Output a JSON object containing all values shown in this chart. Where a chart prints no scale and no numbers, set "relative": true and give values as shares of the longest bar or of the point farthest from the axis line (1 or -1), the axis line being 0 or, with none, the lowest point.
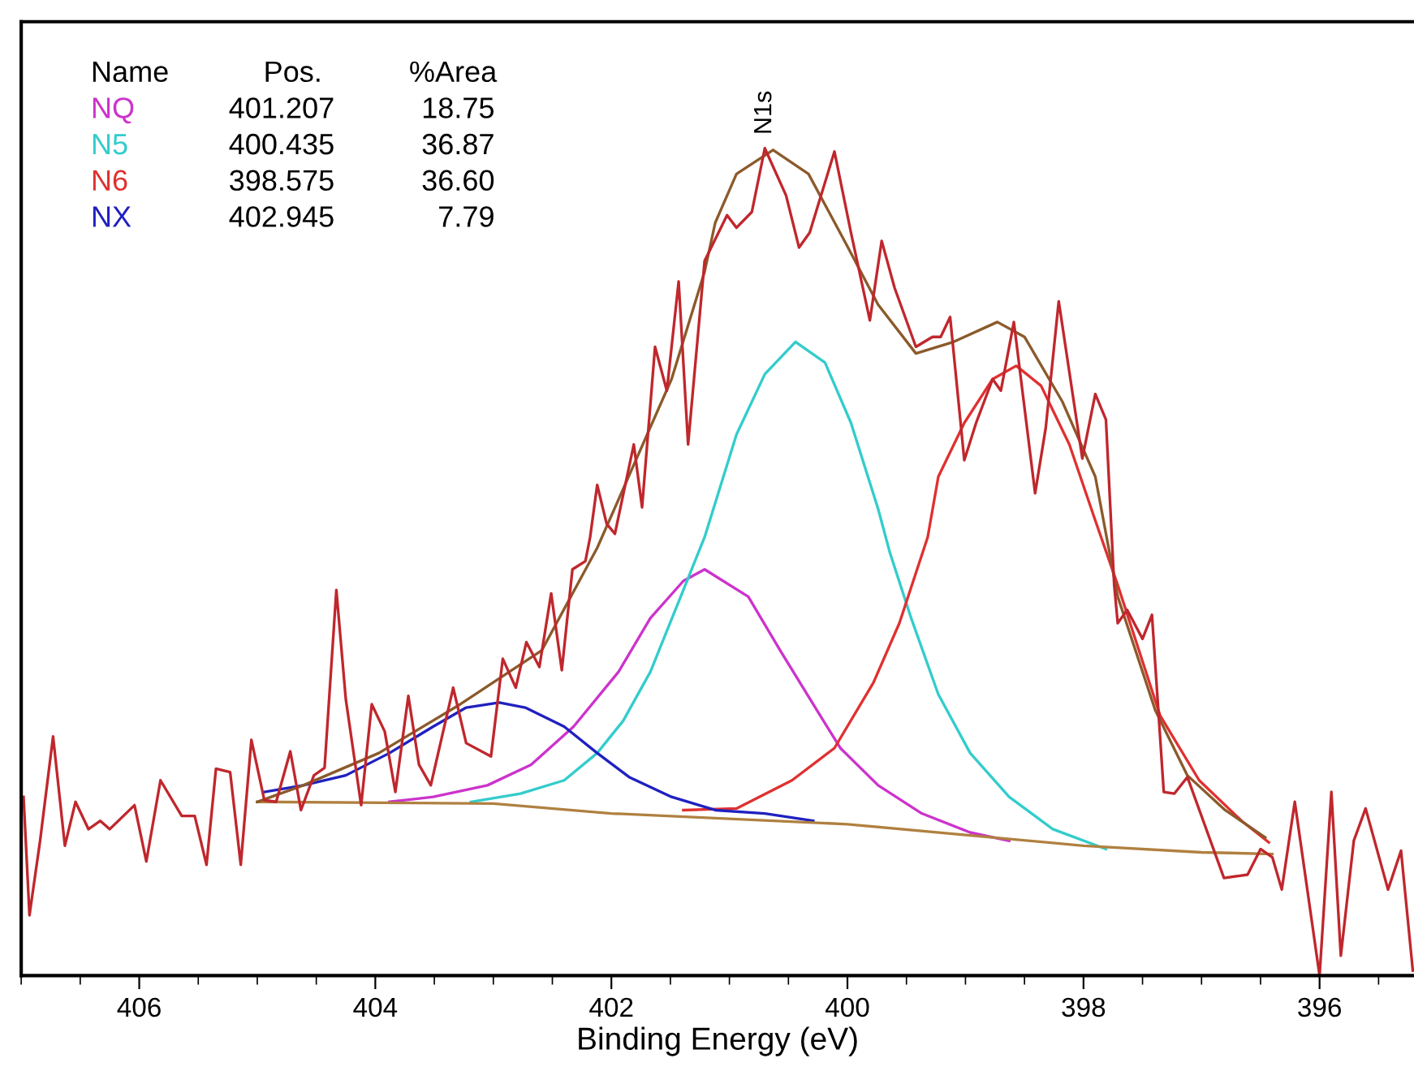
{
  "chart_data": {
    "type": "line",
    "xlabel": "Binding Energy (eV)",
    "relative": true,
    "xlim": [
      407.0,
      395.2
    ],
    "xticks": [
      406,
      404,
      402,
      400,
      398,
      396
    ],
    "tick_labels": "x",
    "grid": false,
    "marker": "none",
    "line_style": "solid",
    "annotations": [
      "Name",
      "Pos.",
      "%Area",
      "401.207",
      "18.75",
      "400.435",
      "36.87",
      "398.575",
      "36.60",
      "402.945",
      "7.79",
      {
        "text": "N1s",
        "x": 400.7,
        "y": 1
      }
    ],
    "series": [
      {
        "name": "NQ",
        "color": "#cc33cc",
        "x": [
          403.88,
          403.51,
          403.05,
          402.68,
          402.32,
          401.94,
          401.67,
          401.39,
          401.21,
          400.84,
          400.57,
          400.29,
          400.06,
          399.74,
          399.37,
          398.96,
          398.63
        ],
        "values": [
          0.21,
          0.216,
          0.23,
          0.255,
          0.301,
          0.367,
          0.432,
          0.477,
          0.491,
          0.458,
          0.393,
          0.328,
          0.275,
          0.23,
          0.196,
          0.173,
          0.163
        ]
      },
      {
        "name": "N5",
        "color": "#33cccc",
        "x": [
          403.19,
          402.77,
          402.4,
          402.12,
          401.9,
          401.67,
          401.43,
          401.21,
          400.94,
          400.7,
          400.44,
          400.19,
          399.97,
          399.74,
          399.64,
          399.46,
          399.23,
          398.96,
          398.63,
          398.26,
          397.81
        ],
        "values": [
          0.21,
          0.22,
          0.236,
          0.269,
          0.308,
          0.367,
          0.452,
          0.53,
          0.654,
          0.727,
          0.766,
          0.741,
          0.668,
          0.564,
          0.511,
          0.432,
          0.34,
          0.269,
          0.216,
          0.177,
          0.153
        ]
      },
      {
        "name": "N6",
        "color": "#e03030",
        "x": [
          401.39,
          400.94,
          400.47,
          400.11,
          399.78,
          399.56,
          399.32,
          399.23,
          399.01,
          398.77,
          398.57,
          398.36,
          398.12,
          397.9,
          397.71,
          397.35,
          397.02,
          396.66,
          396.43
        ],
        "values": [
          0.2,
          0.202,
          0.236,
          0.275,
          0.354,
          0.426,
          0.53,
          0.603,
          0.668,
          0.721,
          0.737,
          0.713,
          0.642,
          0.55,
          0.472,
          0.314,
          0.236,
          0.187,
          0.161
        ]
      },
      {
        "name": "NX",
        "color": "#2020c0",
        "x": [
          404.94,
          404.61,
          404.25,
          403.88,
          403.51,
          403.23,
          402.95,
          402.73,
          402.4,
          402.12,
          401.85,
          401.49,
          401.12,
          400.7,
          400.29
        ],
        "values": [
          0.222,
          0.23,
          0.242,
          0.269,
          0.301,
          0.324,
          0.33,
          0.324,
          0.301,
          0.269,
          0.24,
          0.216,
          0.2,
          0.196,
          0.187
        ]
      },
      {
        "color": "#b08040",
        "x": [
          405.0,
          403.0,
          402.0,
          400.0,
          398.0,
          397.0,
          396.4
        ],
        "values": [
          0.21,
          0.208,
          0.196,
          0.183,
          0.157,
          0.149,
          0.147
        ]
      },
      {
        "color": "#8b5a2b",
        "x": [
          405.0,
          404.61,
          403.97,
          403.28,
          402.59,
          402.12,
          401.49,
          401.21,
          401.12,
          400.94,
          400.63,
          400.33,
          400.01,
          399.74,
          399.42,
          399.1,
          398.73,
          398.5,
          398.18,
          397.9,
          397.71,
          397.39,
          397.12,
          396.8,
          396.46
        ],
        "values": [
          0.21,
          0.23,
          0.269,
          0.328,
          0.393,
          0.517,
          0.721,
          0.851,
          0.91,
          0.969,
          0.998,
          0.969,
          0.884,
          0.811,
          0.752,
          0.766,
          0.79,
          0.772,
          0.694,
          0.603,
          0.458,
          0.32,
          0.242,
          0.2,
          0.167
        ]
      },
      {
        "color": "#c0272d",
        "x": [
          406.98,
          406.93,
          406.84,
          406.73,
          406.63,
          406.54,
          406.43,
          406.33,
          406.25,
          406.04,
          405.94,
          405.82,
          405.64,
          405.53,
          405.43,
          405.35,
          405.23,
          405.14,
          405.05,
          404.94,
          404.84,
          404.72,
          404.63,
          404.52,
          404.43,
          404.33,
          404.25,
          404.12,
          404.03,
          403.92,
          403.83,
          403.72,
          403.63,
          403.53,
          403.34,
          403.23,
          403.02,
          402.92,
          402.81,
          402.72,
          402.61,
          402.51,
          402.42,
          402.33,
          402.22,
          402.18,
          402.12,
          402.04,
          401.97,
          401.81,
          401.74,
          401.63,
          401.53,
          401.43,
          401.35,
          401.21,
          401.02,
          400.94,
          400.81,
          400.7,
          400.52,
          400.41,
          400.32,
          400.11,
          399.97,
          399.81,
          399.71,
          399.6,
          399.42,
          399.28,
          399.21,
          399.13,
          399.01,
          398.91,
          398.77,
          398.7,
          398.59,
          398.41,
          398.32,
          398.21,
          398.01,
          397.9,
          397.81,
          397.74,
          397.71,
          397.63,
          397.5,
          397.42,
          397.32,
          397.23,
          397.12,
          396.81,
          396.61,
          396.5,
          396.4,
          396.32,
          396.21,
          396.0,
          395.9,
          395.82,
          395.71,
          395.61,
          395.42,
          395.31,
          395.21
        ],
        "values": [
          0.216,
          0.073,
          0.163,
          0.289,
          0.157,
          0.21,
          0.177,
          0.187,
          0.177,
          0.206,
          0.138,
          0.236,
          0.193,
          0.193,
          0.134,
          0.25,
          0.246,
          0.134,
          0.285,
          0.212,
          0.21,
          0.271,
          0.2,
          0.242,
          0.251,
          0.466,
          0.334,
          0.206,
          0.328,
          0.295,
          0.222,
          0.338,
          0.255,
          0.23,
          0.348,
          0.281,
          0.265,
          0.383,
          0.348,
          0.403,
          0.373,
          0.462,
          0.369,
          0.491,
          0.501,
          0.53,
          0.593,
          0.546,
          0.534,
          0.642,
          0.566,
          0.76,
          0.707,
          0.839,
          0.642,
          0.864,
          0.919,
          0.904,
          0.923,
          1,
          0.943,
          0.88,
          0.898,
          0.996,
          0.898,
          0.792,
          0.888,
          0.831,
          0.76,
          0.772,
          0.772,
          0.796,
          0.623,
          0.668,
          0.721,
          0.707,
          0.79,
          0.583,
          0.662,
          0.815,
          0.625,
          0.703,
          0.672,
          0.472,
          0.426,
          0.442,
          0.407,
          0.436,
          0.222,
          0.22,
          0.24,
          0.118,
          0.122,
          0.153,
          0.143,
          0.104,
          0.21,
          0,
          0.222,
          0.024,
          0.163,
          0.202,
          0.104,
          0.151,
          0.006
        ]
      }
    ]
  }
}
